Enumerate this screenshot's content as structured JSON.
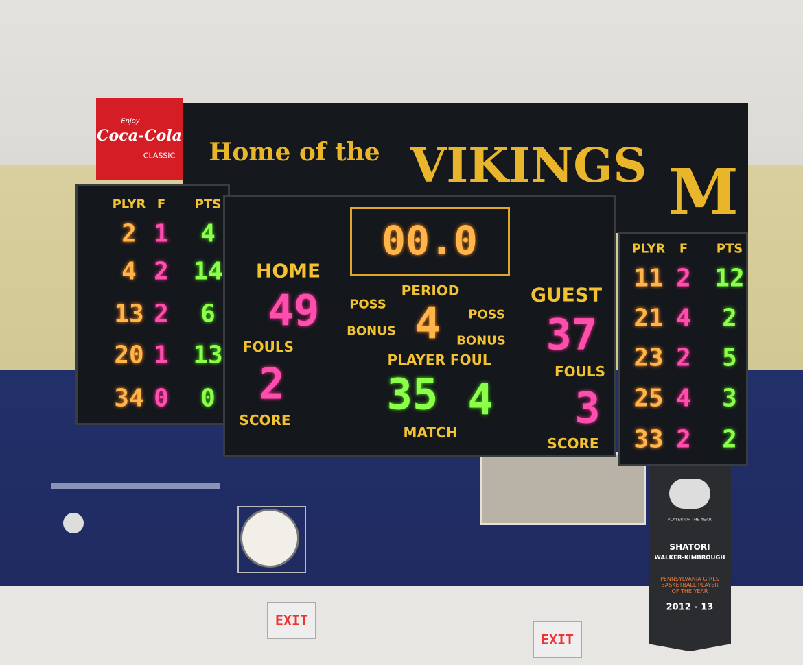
{
  "sponsor": {
    "tagline": "Enjoy",
    "brand": "Coca-Cola",
    "edition": "CLASSIC"
  },
  "header": {
    "lead": "Home of the",
    "team": "VIKINGS",
    "logo": "M"
  },
  "home_stats": {
    "columns": [
      "PLYR",
      "F",
      "PTS"
    ],
    "rows": [
      [
        2,
        1,
        4
      ],
      [
        4,
        2,
        14
      ],
      [
        13,
        2,
        6
      ],
      [
        20,
        1,
        13
      ],
      [
        34,
        0,
        0
      ]
    ]
  },
  "guest_stats": {
    "columns": [
      "PLYR",
      "F",
      "PTS"
    ],
    "rows": [
      [
        11,
        2,
        12
      ],
      [
        21,
        4,
        2
      ],
      [
        23,
        2,
        5
      ],
      [
        25,
        4,
        3
      ],
      [
        33,
        2,
        2
      ]
    ]
  },
  "center": {
    "clock": "00.0",
    "home_label": "HOME",
    "home_score": 49,
    "guest_label": "GUEST",
    "guest_score": 37,
    "period_label": "PERIOD",
    "period": 4,
    "poss": [
      "POSS",
      "POSS"
    ],
    "bonus": [
      "BONUS",
      "BONUS"
    ],
    "fouls_label": [
      "FOULS",
      "FOULS"
    ],
    "home_fouls": 2,
    "guest_fouls": 3,
    "player_foul_label": "PLAYER FOUL",
    "player": 35,
    "foul": 4,
    "score_label": [
      "SCORE",
      "SCORE"
    ],
    "match_label": "MATCH"
  },
  "pennant": {
    "award": "PLAYER OF THE YEAR",
    "first_name": "SHATORI",
    "last_name": "WALKER-KIMBROUGH",
    "citation": "PENNSYLVANIA GIRLS BASKETBALL PLAYER OF THE YEAR",
    "season": "2012 - 13"
  },
  "exit_signs": [
    "EXIT",
    "EXIT"
  ]
}
